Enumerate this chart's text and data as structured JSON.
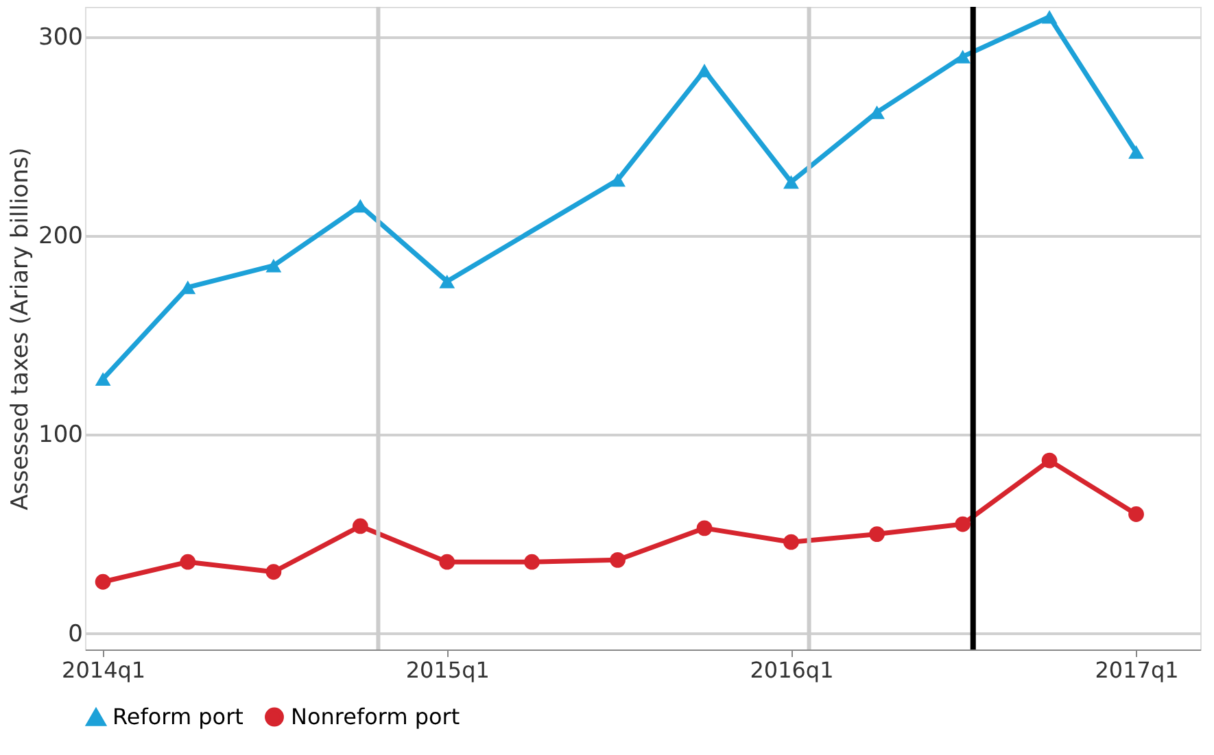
{
  "chart_data": {
    "type": "line",
    "ylabel": "Assessed taxes (Ariary billions)",
    "xlim": [
      "2013-12-13",
      "2017-03-10"
    ],
    "xticks": [
      {
        "value": "2014-01",
        "label": "2014q1"
      },
      {
        "value": "2015-01",
        "label": "2015q1"
      },
      {
        "value": "2016-01",
        "label": "2016q1"
      },
      {
        "value": "2017-01",
        "label": "2017q1"
      }
    ],
    "ylim": [
      -8,
      315
    ],
    "yticks": [
      0,
      100,
      200,
      300
    ],
    "grid": "y",
    "legend": "bottom",
    "series": [
      {
        "name": "Reform port",
        "color": "#1da1d8",
        "marker": "triangle",
        "x": [
          "2014-01",
          "2014-04",
          "2014-07",
          "2014-10",
          "2015-01",
          "2015-07",
          "2015-10",
          "2016-01",
          "2016-04",
          "2016-07",
          "2016-10",
          "2017-01"
        ],
        "values": [
          128,
          174,
          185,
          215,
          177,
          228,
          283,
          227,
          262,
          290,
          310,
          242
        ]
      },
      {
        "name": "Nonreform port",
        "color": "#d6252e",
        "marker": "circle",
        "x": [
          "2014-01",
          "2014-04",
          "2014-07",
          "2014-10",
          "2015-01",
          "2015-04",
          "2015-07",
          "2015-10",
          "2016-01",
          "2016-04",
          "2016-07",
          "2016-10",
          "2017-01"
        ],
        "values": [
          26,
          36,
          31,
          54,
          36,
          36,
          37,
          53,
          46,
          50,
          55,
          87,
          60
        ]
      }
    ],
    "ref_lines": [
      {
        "axis": "x",
        "value": "2014-10-20",
        "color": "#cccccc"
      },
      {
        "axis": "x",
        "value": "2016-01-20",
        "color": "#cccccc"
      },
      {
        "axis": "x",
        "value": "2016-07-12",
        "color": "#000000"
      }
    ]
  }
}
